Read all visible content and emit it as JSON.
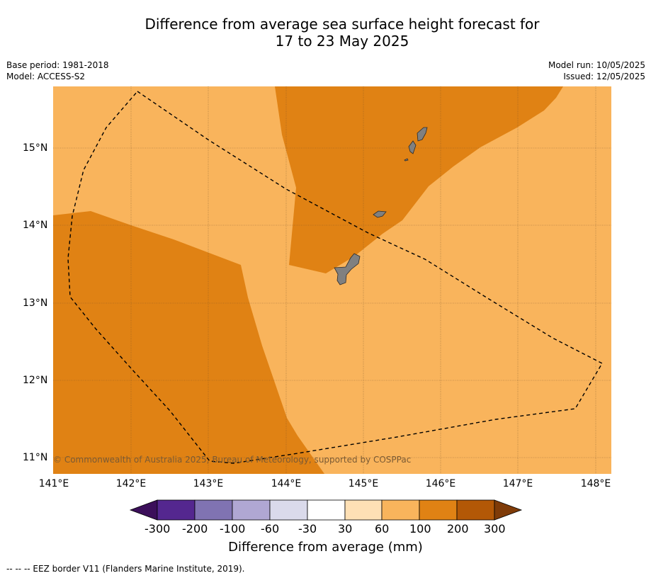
{
  "title_line1": "Difference from average sea surface height forecast for",
  "title_line2": "17 to 23 May 2025",
  "base_period": "Base period: 1981-2018",
  "model": "Model: ACCESS-S2",
  "model_run": "Model run: 10/05/2025",
  "issued": "Issued: 12/05/2025",
  "copyright": "© Commonwealth of Australia 2025, Bureau of Meteorology, supported by COSPPac",
  "x_ticks": [
    "141°E",
    "142°E",
    "143°E",
    "144°E",
    "145°E",
    "146°E",
    "147°E",
    "148°E"
  ],
  "y_ticks": [
    "15°N",
    "14°N",
    "13°N",
    "12°N",
    "11°N"
  ],
  "colorbar": {
    "title": "Difference from average (mm)",
    "tick_labels": [
      "-300",
      "-200",
      "-100",
      "-60",
      "-30",
      "30",
      "60",
      "100",
      "200",
      "300"
    ],
    "colors": [
      "#3b0f5a",
      "#54278f",
      "#8073b2",
      "#b0a7d3",
      "#dadaeb",
      "#ffffff",
      "#fee0b5",
      "#f9b45c",
      "#e08214",
      "#b35806",
      "#7f3b08"
    ]
  },
  "map_colors": {
    "band_60_100": "#f9b45c",
    "band_100_200": "#e08214",
    "land": "#808080",
    "eez": "#000000"
  },
  "footnote": "--  --  -- EEZ border V11 (Flanders Marine Institute, 2019)."
}
